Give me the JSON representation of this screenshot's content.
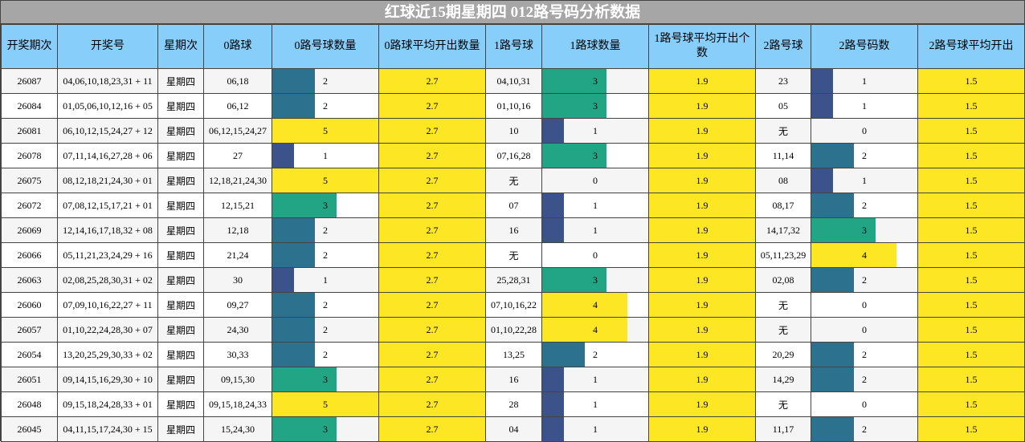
{
  "title": "红球近15期星期四 012路号码分析数据",
  "headers": [
    "开奖期次",
    "开奖号",
    "星期次",
    "0路球",
    "0路号球数量",
    "0路球平均开出数量",
    "1路号球",
    "1路球数量",
    "1路号球平均开出个数",
    "2路号球",
    "2路号码数",
    "2路号球平均开出"
  ],
  "averages": {
    "r0": "2.7",
    "r1": "1.9",
    "r2": "1.5"
  },
  "max_count": 5,
  "bar_colors": {
    "0": "#ffffff",
    "1": "#3b528b",
    "2": "#2c728e",
    "3": "#21a585",
    "4": "#fde725",
    "5": "#fde725"
  },
  "rows": [
    {
      "issue": "26087",
      "numbers": "04,06,10,18,23,31 + 11",
      "weekday": "星期四",
      "r0": "06,18",
      "c0": 2,
      "r1": "04,10,31",
      "c1": 3,
      "r2": "23",
      "c2": 1
    },
    {
      "issue": "26084",
      "numbers": "01,05,06,10,12,16 + 05",
      "weekday": "星期四",
      "r0": "06,12",
      "c0": 2,
      "r1": "01,10,16",
      "c1": 3,
      "r2": "05",
      "c2": 1
    },
    {
      "issue": "26081",
      "numbers": "06,10,12,15,24,27 + 12",
      "weekday": "星期四",
      "r0": "06,12,15,24,27",
      "c0": 5,
      "r1": "10",
      "c1": 1,
      "r2": "无",
      "c2": 0
    },
    {
      "issue": "26078",
      "numbers": "07,11,14,16,27,28 + 06",
      "weekday": "星期四",
      "r0": "27",
      "c0": 1,
      "r1": "07,16,28",
      "c1": 3,
      "r2": "11,14",
      "c2": 2
    },
    {
      "issue": "26075",
      "numbers": "08,12,18,21,24,30 + 01",
      "weekday": "星期四",
      "r0": "12,18,21,24,30",
      "c0": 5,
      "r1": "无",
      "c1": 0,
      "r2": "08",
      "c2": 1
    },
    {
      "issue": "26072",
      "numbers": "07,08,12,15,17,21 + 01",
      "weekday": "星期四",
      "r0": "12,15,21",
      "c0": 3,
      "r1": "07",
      "c1": 1,
      "r2": "08,17",
      "c2": 2
    },
    {
      "issue": "26069",
      "numbers": "12,14,16,17,18,32 + 08",
      "weekday": "星期四",
      "r0": "12,18",
      "c0": 2,
      "r1": "16",
      "c1": 1,
      "r2": "14,17,32",
      "c2": 3
    },
    {
      "issue": "26066",
      "numbers": "05,11,21,23,24,29 + 16",
      "weekday": "星期四",
      "r0": "21,24",
      "c0": 2,
      "r1": "无",
      "c1": 0,
      "r2": "05,11,23,29",
      "c2": 4
    },
    {
      "issue": "26063",
      "numbers": "02,08,25,28,30,31 + 02",
      "weekday": "星期四",
      "r0": "30",
      "c0": 1,
      "r1": "25,28,31",
      "c1": 3,
      "r2": "02,08",
      "c2": 2
    },
    {
      "issue": "26060",
      "numbers": "07,09,10,16,22,27 + 11",
      "weekday": "星期四",
      "r0": "09,27",
      "c0": 2,
      "r1": "07,10,16,22",
      "c1": 4,
      "r2": "无",
      "c2": 0
    },
    {
      "issue": "26057",
      "numbers": "01,10,22,24,28,30 + 07",
      "weekday": "星期四",
      "r0": "24,30",
      "c0": 2,
      "r1": "01,10,22,28",
      "c1": 4,
      "r2": "无",
      "c2": 0
    },
    {
      "issue": "26054",
      "numbers": "13,20,25,29,30,33 + 02",
      "weekday": "星期四",
      "r0": "30,33",
      "c0": 2,
      "r1": "13,25",
      "c1": 2,
      "r2": "20,29",
      "c2": 2
    },
    {
      "issue": "26051",
      "numbers": "09,14,15,16,29,30 + 10",
      "weekday": "星期四",
      "r0": "09,15,30",
      "c0": 3,
      "r1": "16",
      "c1": 1,
      "r2": "14,29",
      "c2": 2
    },
    {
      "issue": "26048",
      "numbers": "09,15,18,24,28,33 + 01",
      "weekday": "星期四",
      "r0": "09,15,18,24,33",
      "c0": 5,
      "r1": "28",
      "c1": 1,
      "r2": "无",
      "c2": 0
    },
    {
      "issue": "26045",
      "numbers": "04,11,15,17,24,30 + 15",
      "weekday": "星期四",
      "r0": "15,24,30",
      "c0": 3,
      "r1": "04",
      "c1": 1,
      "r2": "11,17",
      "c2": 2
    }
  ]
}
